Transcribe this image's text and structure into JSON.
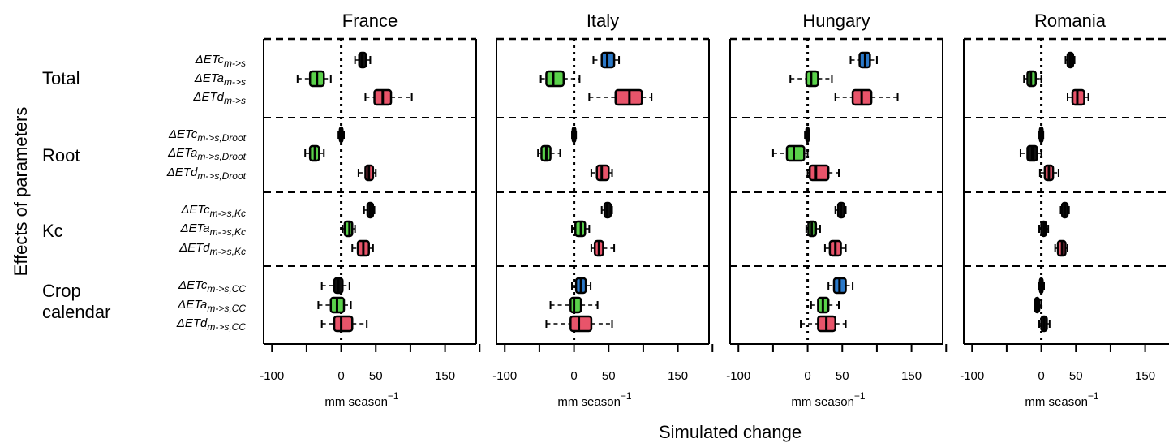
{
  "chart_data": {
    "type": "boxplot",
    "x_axis": {
      "label": "mm season",
      "label_superscript": "−1",
      "tick_labels": [
        "-100",
        "0",
        "50",
        "150"
      ],
      "tick_values": [
        -100,
        0,
        50,
        150
      ],
      "minor_ticks": [
        -50,
        100,
        200
      ],
      "range": [
        -112,
        195
      ]
    },
    "shared_xlabel": "Simulated change",
    "shared_ylabel": "Effects of parameters",
    "groups": [
      "Total",
      "Root",
      "Kc",
      "Crop calendar"
    ],
    "row_labels": [
      {
        "main": "ΔETc",
        "sub": "m->s"
      },
      {
        "main": "ΔETa",
        "sub": "m->s"
      },
      {
        "main": "ΔETd",
        "sub": "m->s"
      },
      {
        "main": "ΔETc",
        "sub": "m->s,Droot"
      },
      {
        "main": "ΔETa",
        "sub": "m->s,Droot"
      },
      {
        "main": "ΔETd",
        "sub": "m->s,Droot"
      },
      {
        "main": "ΔETc",
        "sub": "m->s,Kc"
      },
      {
        "main": "ΔETa",
        "sub": "m->s,Kc"
      },
      {
        "main": "ΔETd",
        "sub": "m->s,Kc"
      },
      {
        "main": "ΔETc",
        "sub": "m->s,CC"
      },
      {
        "main": "ΔETa",
        "sub": "m->s,CC"
      },
      {
        "main": "ΔETd",
        "sub": "m->s,CC"
      }
    ],
    "colors": {
      "ETc": "#2a78c8",
      "ETa": "#5ad14a",
      "ETd": "#e8546a",
      "neutral": "#111111"
    },
    "panels": [
      {
        "country": "France",
        "boxes": [
          {
            "var": "ETc",
            "whisker": [
              20,
              42
            ],
            "q": [
              26,
              30,
              36
            ],
            "fill": "neutral"
          },
          {
            "var": "ETa",
            "whisker": [
              -63,
              -15
            ],
            "q": [
              -45,
              -35,
              -25
            ],
            "fill": "ETa"
          },
          {
            "var": "ETd",
            "whisker": [
              35,
              102
            ],
            "q": [
              48,
              60,
              72
            ],
            "fill": "ETd"
          },
          {
            "var": "ETc",
            "whisker": [
              -4,
              4
            ],
            "q": [
              -2,
              0,
              2
            ],
            "fill": "neutral"
          },
          {
            "var": "ETa",
            "whisker": [
              -52,
              -25
            ],
            "q": [
              -45,
              -38,
              -32
            ],
            "fill": "ETa"
          },
          {
            "var": "ETd",
            "whisker": [
              25,
              50
            ],
            "q": [
              35,
              40,
              46
            ],
            "fill": "ETd"
          },
          {
            "var": "ETc",
            "whisker": [
              33,
              48
            ],
            "q": [
              38,
              42,
              46
            ],
            "fill": "neutral"
          },
          {
            "var": "ETa",
            "whisker": [
              2,
              20
            ],
            "q": [
              5,
              12,
              16
            ],
            "fill": "ETa"
          },
          {
            "var": "ETd",
            "whisker": [
              16,
              46
            ],
            "q": [
              24,
              32,
              40
            ],
            "fill": "ETd"
          },
          {
            "var": "ETc",
            "whisker": [
              -28,
              12
            ],
            "q": [
              -10,
              -4,
              2
            ],
            "fill": "neutral"
          },
          {
            "var": "ETa",
            "whisker": [
              -33,
              14
            ],
            "q": [
              -15,
              -6,
              4
            ],
            "fill": "ETa"
          },
          {
            "var": "ETd",
            "whisker": [
              -28,
              37
            ],
            "q": [
              -10,
              0,
              16
            ],
            "fill": "ETd"
          }
        ]
      },
      {
        "country": "Italy",
        "boxes": [
          {
            "var": "ETc",
            "whisker": [
              28,
              65
            ],
            "q": [
              40,
              48,
              58
            ],
            "fill": "ETc"
          },
          {
            "var": "ETa",
            "whisker": [
              -48,
              8
            ],
            "q": [
              -40,
              -30,
              -15
            ],
            "fill": "ETa"
          },
          {
            "var": "ETd",
            "whisker": [
              22,
              112
            ],
            "q": [
              60,
              80,
              98
            ],
            "fill": "ETd"
          },
          {
            "var": "ETc",
            "whisker": [
              -3,
              3
            ],
            "q": [
              -2,
              0,
              2
            ],
            "fill": "neutral"
          },
          {
            "var": "ETa",
            "whisker": [
              -52,
              -20
            ],
            "q": [
              -47,
              -40,
              -34
            ],
            "fill": "ETa"
          },
          {
            "var": "ETd",
            "whisker": [
              25,
              55
            ],
            "q": [
              33,
              40,
              50
            ],
            "fill": "ETd"
          },
          {
            "var": "ETc",
            "whisker": [
              40,
              55
            ],
            "q": [
              44,
              48,
              53
            ],
            "fill": "neutral"
          },
          {
            "var": "ETa",
            "whisker": [
              -3,
              22
            ],
            "q": [
              2,
              10,
              16
            ],
            "fill": "ETa"
          },
          {
            "var": "ETd",
            "whisker": [
              25,
              58
            ],
            "q": [
              30,
              36,
              42
            ],
            "fill": "ETd"
          },
          {
            "var": "ETc",
            "whisker": [
              -3,
              24
            ],
            "q": [
              3,
              10,
              17
            ],
            "fill": "ETc"
          },
          {
            "var": "ETa",
            "whisker": [
              -34,
              34
            ],
            "q": [
              -5,
              0,
              10
            ],
            "fill": "ETa"
          },
          {
            "var": "ETd",
            "whisker": [
              -40,
              55
            ],
            "q": [
              -5,
              7,
              25
            ],
            "fill": "ETd"
          }
        ]
      },
      {
        "country": "Hungary",
        "boxes": [
          {
            "var": "ETc",
            "whisker": [
              62,
              100
            ],
            "q": [
              75,
              83,
              90
            ],
            "fill": "ETc"
          },
          {
            "var": "ETa",
            "whisker": [
              -25,
              35
            ],
            "q": [
              -2,
              5,
              15
            ],
            "fill": "ETa"
          },
          {
            "var": "ETd",
            "whisker": [
              40,
              130
            ],
            "q": [
              65,
              78,
              92
            ],
            "fill": "ETd"
          },
          {
            "var": "ETc",
            "whisker": [
              -4,
              2
            ],
            "q": [
              -2,
              0,
              1
            ],
            "fill": "neutral"
          },
          {
            "var": "ETa",
            "whisker": [
              -50,
              0
            ],
            "q": [
              -30,
              -20,
              -5
            ],
            "fill": "ETa"
          },
          {
            "var": "ETd",
            "whisker": [
              0,
              45
            ],
            "q": [
              3,
              12,
              30
            ],
            "fill": "ETd"
          },
          {
            "var": "ETc",
            "whisker": [
              40,
              55
            ],
            "q": [
              44,
              48,
              53
            ],
            "fill": "neutral"
          },
          {
            "var": "ETa",
            "whisker": [
              -2,
              18
            ],
            "q": [
              1,
              6,
              12
            ],
            "fill": "ETa"
          },
          {
            "var": "ETd",
            "whisker": [
              25,
              55
            ],
            "q": [
              32,
              40,
              48
            ],
            "fill": "ETd"
          },
          {
            "var": "ETc",
            "whisker": [
              30,
              65
            ],
            "q": [
              38,
              46,
              55
            ],
            "fill": "ETc"
          },
          {
            "var": "ETa",
            "whisker": [
              5,
              45
            ],
            "q": [
              15,
              22,
              30
            ],
            "fill": "ETa"
          },
          {
            "var": "ETd",
            "whisker": [
              -10,
              55
            ],
            "q": [
              15,
              27,
              40
            ],
            "fill": "ETd"
          }
        ]
      },
      {
        "country": "Romania",
        "boxes": [
          {
            "var": "ETc",
            "whisker": [
              35,
              48
            ],
            "q": [
              38,
              42,
              46
            ],
            "fill": "neutral"
          },
          {
            "var": "ETa",
            "whisker": [
              -25,
              0
            ],
            "q": [
              -20,
              -15,
              -8
            ],
            "fill": "ETa"
          },
          {
            "var": "ETd",
            "whisker": [
              38,
              68
            ],
            "q": [
              45,
              52,
              62
            ],
            "fill": "ETd"
          },
          {
            "var": "ETc",
            "whisker": [
              -3,
              3
            ],
            "q": [
              -2,
              0,
              2
            ],
            "fill": "neutral"
          },
          {
            "var": "ETa",
            "whisker": [
              -30,
              0
            ],
            "q": [
              -20,
              -13,
              -6
            ],
            "fill": "neutral"
          },
          {
            "var": "ETd",
            "whisker": [
              -2,
              25
            ],
            "q": [
              5,
              11,
              17
            ],
            "fill": "ETd"
          },
          {
            "var": "ETc",
            "whisker": [
              28,
              40
            ],
            "q": [
              30,
              34,
              38
            ],
            "fill": "neutral"
          },
          {
            "var": "ETa",
            "whisker": [
              -3,
              10
            ],
            "q": [
              0,
              4,
              7
            ],
            "fill": "neutral"
          },
          {
            "var": "ETd",
            "whisker": [
              20,
              38
            ],
            "q": [
              24,
              30,
              35
            ],
            "fill": "ETd"
          },
          {
            "var": "ETc",
            "whisker": [
              -4,
              4
            ],
            "q": [
              -2,
              0,
              2
            ],
            "fill": "neutral"
          },
          {
            "var": "ETa",
            "whisker": [
              -10,
              0
            ],
            "q": [
              -9,
              -6,
              -3
            ],
            "fill": "neutral"
          },
          {
            "var": "ETd",
            "whisker": [
              -3,
              12
            ],
            "q": [
              0,
              4,
              8
            ],
            "fill": "neutral"
          }
        ]
      }
    ]
  }
}
